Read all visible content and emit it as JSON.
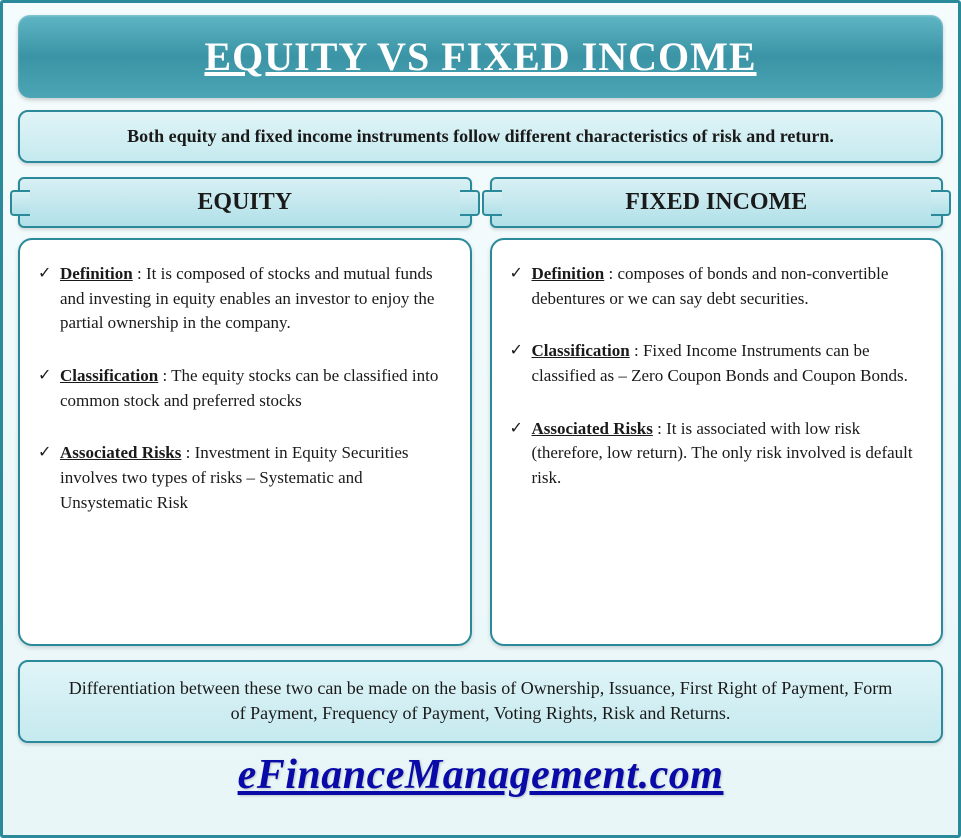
{
  "title": "EQUITY VS FIXED INCOME",
  "intro": "Both equity and fixed income instruments follow different characteristics of risk and return.",
  "columns": [
    {
      "header": "EQUITY",
      "items": [
        {
          "label": "Definition",
          "text": " : It is composed of stocks and mutual funds and investing in equity enables an investor to enjoy the partial ownership in the company."
        },
        {
          "label": "Classification",
          "text": " : The equity stocks can be classified into common stock and preferred stocks"
        },
        {
          "label": "Associated Risks",
          "text": " : Investment in Equity Securities involves two types of risks – Systematic and Unsystematic Risk"
        }
      ]
    },
    {
      "header": "FIXED INCOME",
      "items": [
        {
          "label": "Definition",
          "text": " : composes of bonds and non-convertible debentures or we can say debt securities."
        },
        {
          "label": "Classification",
          "text": " : Fixed Income Instruments can be classified as – Zero Coupon Bonds and Coupon Bonds."
        },
        {
          "label": "Associated Risks",
          "text": " : It is associated with low risk (therefore, low return). The only risk involved is default risk."
        }
      ]
    }
  ],
  "footer": "Differentiation between these two can be made on the basis of Ownership, Issuance, First Right of Payment, Form of Payment, Frequency of Payment, Voting Rights, Risk and Returns.",
  "brand": "eFinanceManagement.com",
  "colors": {
    "border": "#2a8a9a",
    "title_bg": "#4ba5b5",
    "box_bg": "#c5eaef",
    "brand_color": "#0a0aa8",
    "text": "#1a1a1a"
  },
  "typography": {
    "title_fontsize": 40,
    "header_fontsize": 24,
    "body_fontsize": 17,
    "brand_fontsize": 42
  }
}
